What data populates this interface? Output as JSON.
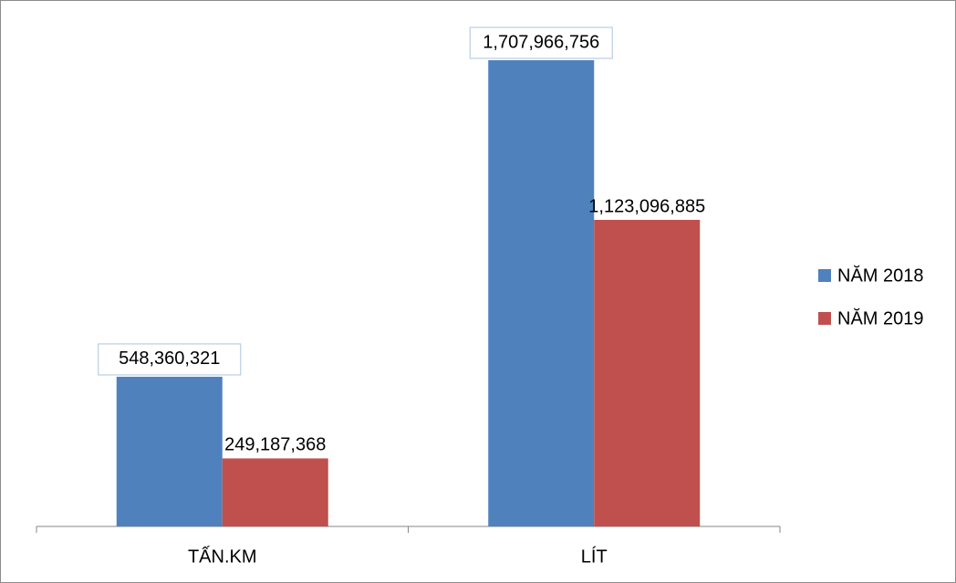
{
  "chart_data": {
    "type": "bar",
    "title": "",
    "xlabel": "",
    "ylabel": "",
    "categories": [
      "TẤN.KM",
      "LÍT"
    ],
    "series": [
      {
        "name": "NĂM 2018",
        "color": "#4f81bd",
        "values": [
          548360321,
          1707966756
        ],
        "labels": [
          "548,360,321",
          "1,707,966,756"
        ],
        "label_boxed": true
      },
      {
        "name": "NĂM 2019",
        "color": "#c0504d",
        "values": [
          249187368,
          1123096885
        ],
        "labels": [
          "249,187,368",
          "1,123,096,885"
        ],
        "label_boxed": false
      }
    ],
    "ylim": [
      0,
      2000000000
    ],
    "y_axis_visible": false,
    "grid": false,
    "legend_position": "right"
  }
}
